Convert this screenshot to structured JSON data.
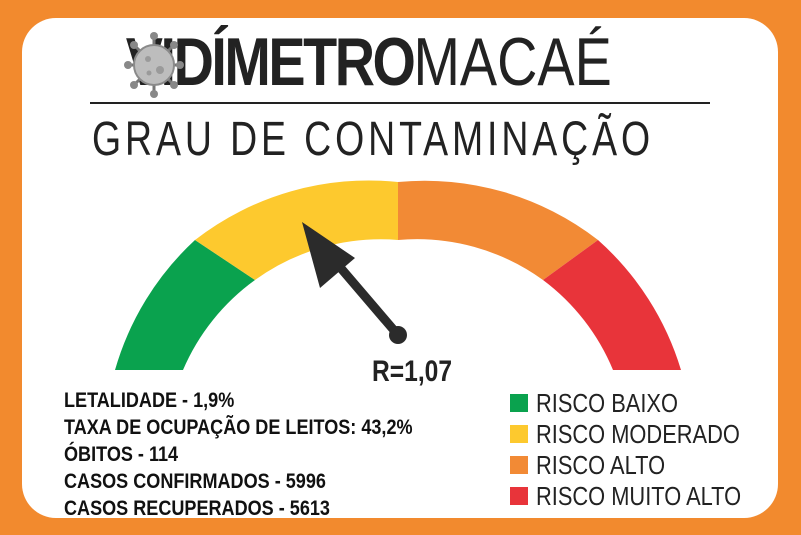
{
  "header": {
    "title_bold_start": "C",
    "title_bold_rest": "VIDÍMETRO",
    "title_light": "MACAÉ",
    "subtitle": "GRAU DE CONTAMINAÇÃO"
  },
  "gauge": {
    "r_value_label": "R=1,07",
    "needle_position": 0.31
  },
  "stats": {
    "letalidade": "LETALIDADE - 1,9%",
    "taxa_ocupacao": "TAXA DE OCUPAÇÃO DE LEITOS: 43,2%",
    "obitos": "ÓBITOS - 114",
    "casos_confirmados": "CASOS CONFIRMADOS - 5996",
    "casos_recuperados": "CASOS RECUPERADOS - 5613"
  },
  "legend": [
    {
      "label": "RISCO BAIXO",
      "color": "#0aa24e"
    },
    {
      "label": "RISCO MODERADO",
      "color": "#fdc92e"
    },
    {
      "label": "RISCO ALTO",
      "color": "#f28a35"
    },
    {
      "label": "RISCO MUITO ALTO",
      "color": "#e8343a"
    }
  ],
  "colors": {
    "frame": "#f28a2e",
    "text": "#222222"
  }
}
